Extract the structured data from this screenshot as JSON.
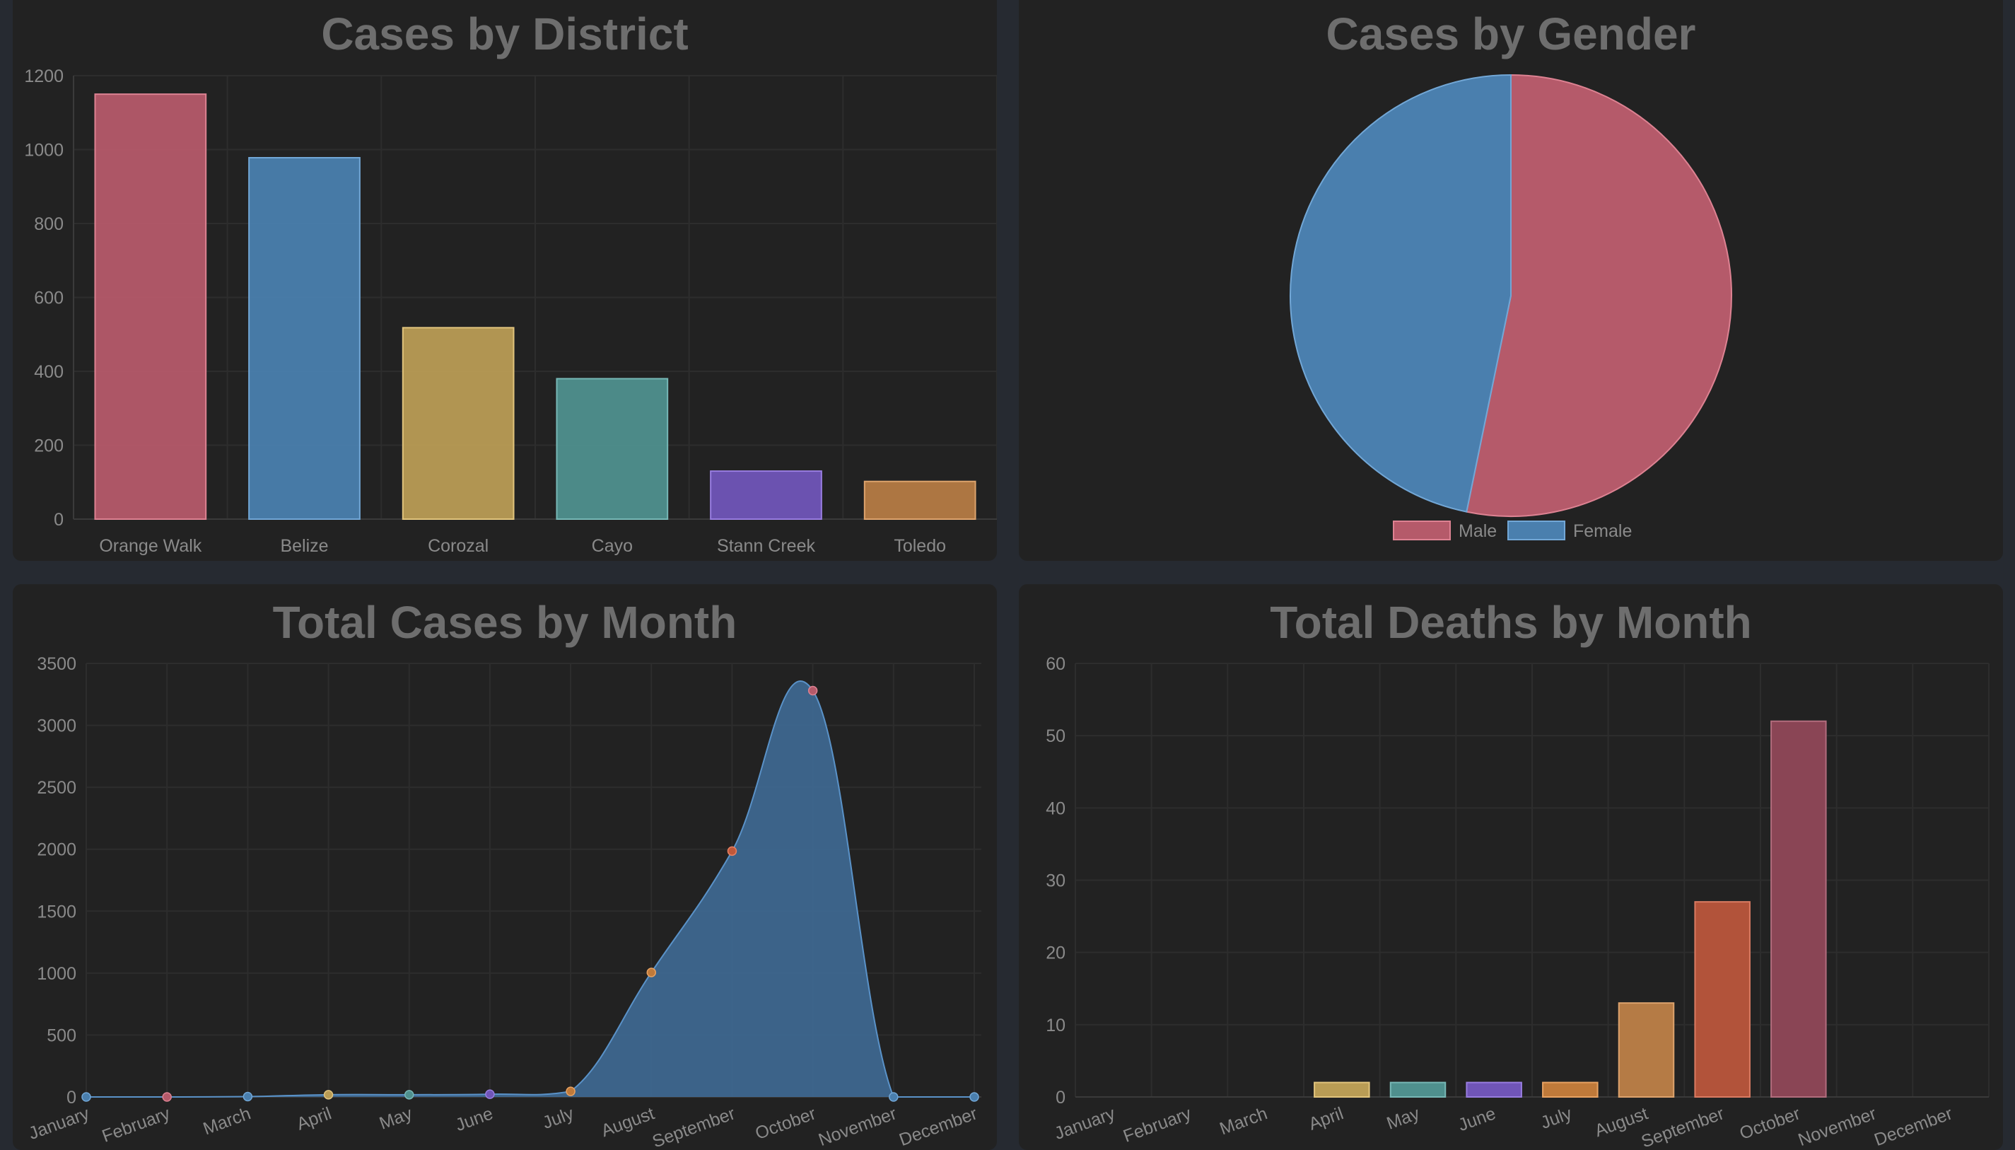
{
  "chart_data": [
    {
      "type": "bar",
      "title": "Cases by District",
      "categories": [
        "Orange Walk",
        "Belize",
        "Corozal",
        "Cayo",
        "Stann Creek",
        "Toledo"
      ],
      "values": [
        1150,
        978,
        518,
        380,
        130,
        102
      ],
      "colors": [
        "#b55a6a",
        "#4a7fae",
        "#b99c55",
        "#4f908e",
        "#7055b8",
        "#b57b45"
      ],
      "ylim": [
        0,
        1200
      ],
      "yticks": [
        0,
        200,
        400,
        600,
        800,
        1000,
        1200
      ],
      "grid": true
    },
    {
      "type": "pie",
      "title": "Cases by Gender",
      "labels": [
        "Male",
        "Female"
      ],
      "values": [
        1388,
        1220
      ],
      "colors": [
        "#b55a6a",
        "#4a7fae"
      ],
      "legend": "bottom"
    },
    {
      "type": "area",
      "title": "Total Cases by Month",
      "categories": [
        "January",
        "February",
        "March",
        "April",
        "May",
        "June",
        "July",
        "August",
        "September",
        "October",
        "November",
        "December"
      ],
      "values": [
        0,
        0,
        3,
        18,
        18,
        22,
        45,
        1005,
        1985,
        3280,
        0,
        0
      ],
      "point_colors": [
        "#4a7fae",
        "#b55a6a",
        "#4a7fae",
        "#b99c55",
        "#4f908e",
        "#7055b8",
        "#c07a3a",
        "#c07a3a",
        "#c0583a",
        "#b55a6a",
        "#4a7fae",
        "#4a7fae"
      ],
      "ylim": [
        0,
        3500
      ],
      "yticks": [
        0,
        500,
        1000,
        1500,
        2000,
        2500,
        3000,
        3500
      ],
      "grid": true
    },
    {
      "type": "bar",
      "title": "Total Deaths by Month",
      "categories": [
        "January",
        "February",
        "March",
        "April",
        "May",
        "June",
        "July",
        "August",
        "September",
        "October",
        "November",
        "December"
      ],
      "values": [
        0,
        0,
        0,
        2,
        2,
        2,
        2,
        13,
        27,
        52,
        0,
        0
      ],
      "colors": [
        "#b99c55",
        "#b99c55",
        "#b99c55",
        "#b99c55",
        "#4f908e",
        "#7055b8",
        "#c07a3a",
        "#b57b45",
        "#b2533a",
        "#8a4555",
        "#4a7fae",
        "#4a7fae"
      ],
      "ylim": [
        0,
        60
      ],
      "yticks": [
        0,
        10,
        20,
        30,
        40,
        50,
        60
      ],
      "grid": true
    }
  ]
}
